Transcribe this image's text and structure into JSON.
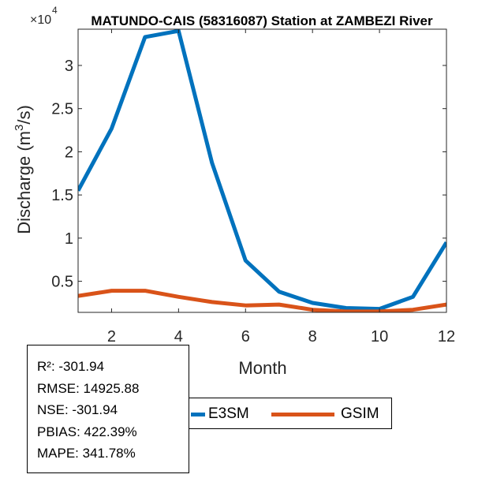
{
  "chart_data": {
    "type": "line",
    "title": "MATUNDO-CAIS (58316087)  Station at  ZAMBEZI  River",
    "xlabel": "Month",
    "ylabel": "Discharge (m³/s)",
    "ylabel_base": "Discharge (m",
    "ylabel_sup": "3",
    "ylabel_tail": "/s)",
    "y_exponent_label": "×10",
    "y_exponent_power": "4",
    "xlim": [
      1,
      12
    ],
    "ylim": [
      0.14,
      3.42
    ],
    "x_ticks": [
      2,
      4,
      6,
      8,
      10,
      12
    ],
    "x_tick_labels": [
      "2",
      "4",
      "6",
      "8",
      "10",
      "12"
    ],
    "y_ticks": [
      0.5,
      1,
      1.5,
      2,
      2.5,
      3
    ],
    "y_tick_labels": [
      "0.5",
      "1",
      "1.5",
      "2",
      "2.5",
      "3"
    ],
    "x": [
      1,
      2,
      3,
      4,
      5,
      6,
      7,
      8,
      9,
      10,
      11,
      12
    ],
    "series": [
      {
        "name": "E3SM",
        "color": "#0072BD",
        "values": [
          1.55,
          2.27,
          3.33,
          3.4,
          1.87,
          0.74,
          0.38,
          0.25,
          0.19,
          0.18,
          0.32,
          0.95
        ]
      },
      {
        "name": "GSIM",
        "color": "#D95319",
        "values": [
          0.33,
          0.39,
          0.39,
          0.32,
          0.26,
          0.22,
          0.23,
          0.17,
          0.15,
          0.15,
          0.17,
          0.23
        ]
      }
    ],
    "grid": false,
    "legend_position": "bottom-right"
  },
  "stats": {
    "r2": "R²: -301.94",
    "rmse": "RMSE: 14925.88",
    "nse": "NSE: -301.94",
    "pbias": "PBIAS: 422.39%",
    "mape": "MAPE: 341.78%"
  },
  "legend": {
    "items": [
      "E3SM",
      "GSIM"
    ]
  }
}
